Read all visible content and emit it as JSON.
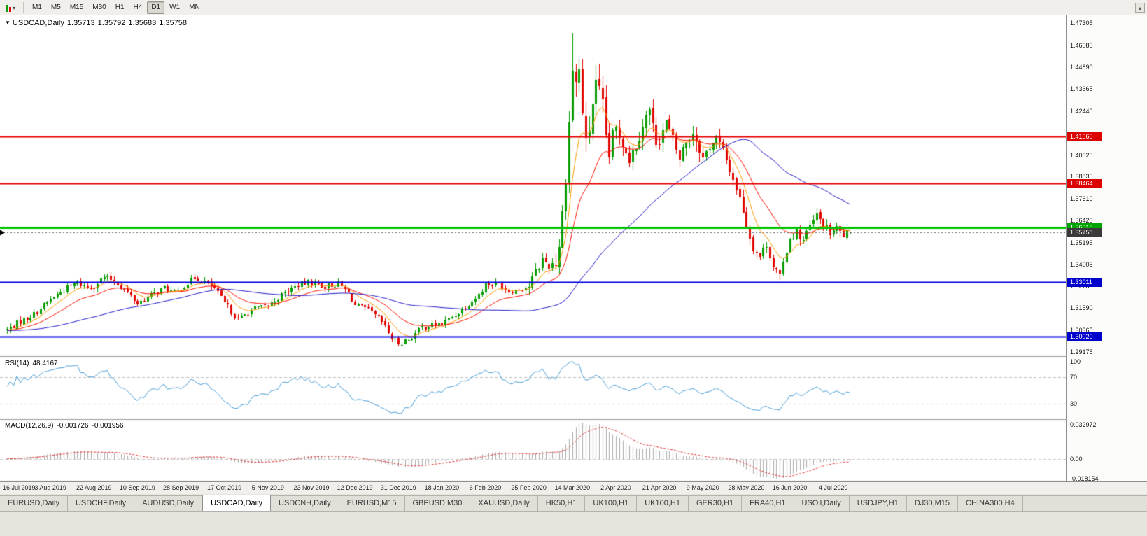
{
  "toolbar": {
    "chart_icon": "candlestick-chart",
    "dropdown_icon": "▾",
    "timeframes": [
      {
        "label": "M1",
        "active": false
      },
      {
        "label": "M5",
        "active": false
      },
      {
        "label": "M15",
        "active": false
      },
      {
        "label": "M30",
        "active": false
      },
      {
        "label": "H1",
        "active": false
      },
      {
        "label": "H4",
        "active": false
      },
      {
        "label": "D1",
        "active": true
      },
      {
        "label": "W1",
        "active": false
      },
      {
        "label": "MN",
        "active": false
      }
    ],
    "scroll_up_glyph": "▴"
  },
  "chart": {
    "title": {
      "marker": "▼",
      "symbol": "USDCAD,Daily",
      "open": "1.35713",
      "high": "1.35792",
      "low": "1.35683",
      "close": "1.35758"
    },
    "price_axis": {
      "ticks": [
        "1.47305",
        "1.46080",
        "1.44890",
        "1.43665",
        "1.42440",
        "1.40025",
        "1.38835",
        "1.37610",
        "1.36420",
        "1.35195",
        "1.34005",
        "1.32780",
        "1.31590",
        "1.30365",
        "1.29175"
      ],
      "badges": [
        {
          "value": "1.41060",
          "price": 1.4106,
          "color": "#dd0000"
        },
        {
          "value": "1.38464",
          "price": 1.38464,
          "color": "#dd0000"
        },
        {
          "value": "1.36018",
          "price": 1.36018,
          "color": "#00a400"
        },
        {
          "value": "1.35758",
          "price": 1.35758,
          "color": "#3a3a3a"
        },
        {
          "value": "1.33011",
          "price": 1.33011,
          "color": "#0000cc"
        },
        {
          "value": "1.30020",
          "price": 1.3002,
          "color": "#0000cc"
        }
      ]
    },
    "levels": [
      {
        "price": 1.4106,
        "color": "#e60000",
        "width": 2
      },
      {
        "price": 1.38464,
        "color": "#e60000",
        "width": 2
      },
      {
        "price": 1.36018,
        "color": "#00c400",
        "width": 3
      },
      {
        "price": 1.33011,
        "color": "#0000e0",
        "width": 2
      },
      {
        "price": 1.3002,
        "color": "#0000e0",
        "width": 2
      }
    ]
  },
  "rsi_panel": {
    "label": "RSI(14)",
    "value": "48.4167",
    "axis": [
      {
        "v": 100,
        "text": "100"
      },
      {
        "v": 70,
        "text": "70"
      },
      {
        "v": 30,
        "text": "30"
      }
    ],
    "dashed_levels": [
      70,
      30
    ],
    "line_color": "#4a9fd8"
  },
  "macd_panel": {
    "label": "MACD(12,26,9)",
    "value_main": "-0.001726",
    "value_signal": "-0.001956",
    "axis": [
      {
        "v": 0.032972,
        "text": "0.032972"
      },
      {
        "v": 0,
        "text": "0.00"
      },
      {
        "v": -0.018154,
        "text": "-0.018154"
      }
    ],
    "histogram_color": "#ababab",
    "signal_color": "#e03030"
  },
  "tabs": [
    {
      "label": "EURUSD,Daily",
      "active": false
    },
    {
      "label": "USDCHF,Daily",
      "active": false
    },
    {
      "label": "AUDUSD,Daily",
      "active": false
    },
    {
      "label": "USDCAD,Daily",
      "active": true
    },
    {
      "label": "USDCNH,Daily",
      "active": false
    },
    {
      "label": "EURUSD,M15",
      "active": false
    },
    {
      "label": "GBPUSD,M30",
      "active": false
    },
    {
      "label": "XAUUSD,Daily",
      "active": false
    },
    {
      "label": "HK50,H1",
      "active": false
    },
    {
      "label": "UK100,H1",
      "active": false
    },
    {
      "label": "UK100,H1",
      "active": false
    },
    {
      "label": "GER30,H1",
      "active": false
    },
    {
      "label": "FRA40,H1",
      "active": false
    },
    {
      "label": "USOil,Daily",
      "active": false
    },
    {
      "label": "USDJPY,H1",
      "active": false
    },
    {
      "label": "DJ30,M15",
      "active": false
    },
    {
      "label": "CHINA300,H4",
      "active": false
    }
  ],
  "chart_data": {
    "type": "candlestick",
    "symbol": "USDCAD",
    "timeframe": "Daily",
    "title": "USDCAD,Daily 1.35713 1.35792 1.35683 1.35758",
    "visible_price_range": [
      1.29175,
      1.47305
    ],
    "last_quote": {
      "open": 1.35713,
      "high": 1.35792,
      "low": 1.35683,
      "close": 1.35758
    },
    "horizontal_lines": [
      {
        "price": 1.4106,
        "color": "red"
      },
      {
        "price": 1.38464,
        "color": "red"
      },
      {
        "price": 1.36018,
        "color": "green"
      },
      {
        "price": 1.33011,
        "color": "blue"
      },
      {
        "price": 1.3002,
        "color": "blue"
      }
    ],
    "x_axis": [
      {
        "label": "16 Jul 2019",
        "index": 0
      },
      {
        "label": "3 Aug 2019",
        "index": 13
      },
      {
        "label": "22 Aug 2019",
        "index": 26
      },
      {
        "label": "10 Sep 2019",
        "index": 39
      },
      {
        "label": "28 Sep 2019",
        "index": 52
      },
      {
        "label": "17 Oct 2019",
        "index": 65
      },
      {
        "label": "5 Nov 2019",
        "index": 78
      },
      {
        "label": "23 Nov 2019",
        "index": 91
      },
      {
        "label": "12 Dec 2019",
        "index": 104
      },
      {
        "label": "31 Dec 2019",
        "index": 117
      },
      {
        "label": "18 Jan 2020",
        "index": 130
      },
      {
        "label": "6 Feb 2020",
        "index": 143
      },
      {
        "label": "25 Feb 2020",
        "index": 156
      },
      {
        "label": "14 Mar 2020",
        "index": 169
      },
      {
        "label": "2 Apr 2020",
        "index": 182
      },
      {
        "label": "21 Apr 2020",
        "index": 195
      },
      {
        "label": "9 May 2020",
        "index": 208
      },
      {
        "label": "28 May 2020",
        "index": 221
      },
      {
        "label": "16 Jun 2020",
        "index": 234
      },
      {
        "label": "4 Jul 2020",
        "index": 247
      }
    ],
    "candle_count": 253,
    "close_path": [
      [
        0,
        1.304
      ],
      [
        4,
        1.3085
      ],
      [
        8,
        1.3125
      ],
      [
        13,
        1.3205
      ],
      [
        17,
        1.3262
      ],
      [
        21,
        1.3298
      ],
      [
        24,
        1.327
      ],
      [
        26,
        1.3282
      ],
      [
        29,
        1.3328
      ],
      [
        32,
        1.331
      ],
      [
        36,
        1.3242
      ],
      [
        39,
        1.3185
      ],
      [
        43,
        1.3228
      ],
      [
        47,
        1.3268
      ],
      [
        50,
        1.3242
      ],
      [
        53,
        1.3282
      ],
      [
        56,
        1.3325
      ],
      [
        59,
        1.3305
      ],
      [
        62,
        1.3268
      ],
      [
        65,
        1.3185
      ],
      [
        69,
        1.3095
      ],
      [
        73,
        1.3148
      ],
      [
        78,
        1.3172
      ],
      [
        83,
        1.3242
      ],
      [
        87,
        1.3288
      ],
      [
        91,
        1.3302
      ],
      [
        95,
        1.3278
      ],
      [
        99,
        1.3292
      ],
      [
        102,
        1.324
      ],
      [
        104,
        1.3172
      ],
      [
        108,
        1.3148
      ],
      [
        112,
        1.3082
      ],
      [
        115,
        1.2992
      ],
      [
        117,
        1.2965
      ],
      [
        120,
        1.2985
      ],
      [
        124,
        1.3052
      ],
      [
        127,
        1.3062
      ],
      [
        130,
        1.3072
      ],
      [
        134,
        1.3122
      ],
      [
        138,
        1.3182
      ],
      [
        141,
        1.3232
      ],
      [
        143,
        1.3288
      ],
      [
        147,
        1.3292
      ],
      [
        150,
        1.3252
      ],
      [
        153,
        1.3262
      ],
      [
        156,
        1.3282
      ],
      [
        158,
        1.3355
      ],
      [
        160,
        1.3428
      ],
      [
        162,
        1.3392
      ],
      [
        164,
        1.3425
      ],
      [
        165,
        1.3515
      ],
      [
        166,
        1.3672
      ],
      [
        167,
        1.3915
      ],
      [
        168,
        1.418
      ],
      [
        169,
        1.448
      ],
      [
        170,
        1.4395
      ],
      [
        171,
        1.447
      ],
      [
        172,
        1.4245
      ],
      [
        173,
        1.4052
      ],
      [
        174,
        1.415
      ],
      [
        175,
        1.4298
      ],
      [
        176,
        1.4375
      ],
      [
        177,
        1.4328
      ],
      [
        178,
        1.4252
      ],
      [
        179,
        1.4105
      ],
      [
        180,
        1.4005
      ],
      [
        181,
        1.4082
      ],
      [
        182,
        1.4148
      ],
      [
        184,
        1.4078
      ],
      [
        186,
        1.3985
      ],
      [
        188,
        1.4062
      ],
      [
        190,
        1.4178
      ],
      [
        192,
        1.4252
      ],
      [
        193,
        1.4152
      ],
      [
        194,
        1.4085
      ],
      [
        195,
        1.4102
      ],
      [
        197,
        1.4178
      ],
      [
        199,
        1.4082
      ],
      [
        201,
        1.3982
      ],
      [
        203,
        1.4082
      ],
      [
        205,
        1.4128
      ],
      [
        207,
        1.4048
      ],
      [
        208,
        1.3985
      ],
      [
        210,
        1.4052
      ],
      [
        212,
        1.4098
      ],
      [
        214,
        1.4022
      ],
      [
        216,
        1.3922
      ],
      [
        218,
        1.3822
      ],
      [
        220,
        1.3702
      ],
      [
        221,
        1.3612
      ],
      [
        223,
        1.3492
      ],
      [
        225,
        1.3445
      ],
      [
        227,
        1.3512
      ],
      [
        229,
        1.3392
      ],
      [
        231,
        1.3325
      ],
      [
        233,
        1.3482
      ],
      [
        234,
        1.3548
      ],
      [
        236,
        1.3578
      ],
      [
        238,
        1.3532
      ],
      [
        240,
        1.3608
      ],
      [
        242,
        1.3668
      ],
      [
        244,
        1.3622
      ],
      [
        246,
        1.3572
      ],
      [
        248,
        1.3595
      ],
      [
        250,
        1.3562
      ],
      [
        252,
        1.3576
      ]
    ],
    "extremes": {
      "high": {
        "index": 169,
        "price": 1.4675
      },
      "lows": [
        {
          "index": 117,
          "price": 1.2952
        },
        {
          "index": 231,
          "price": 1.3316
        }
      ]
    },
    "volatility_regimes": [
      [
        0,
        155,
        0.004
      ],
      [
        156,
        163,
        0.007
      ],
      [
        164,
        181,
        0.016
      ],
      [
        182,
        207,
        0.01
      ],
      [
        208,
        220,
        0.007
      ],
      [
        221,
        252,
        0.006
      ]
    ],
    "noise_seed": 7,
    "indicators": [
      {
        "name": "MA",
        "periods": [
          8,
          20,
          55
        ],
        "colors": [
          "#ff9900",
          "#ff1400",
          "#2219c8"
        ]
      },
      {
        "name": "RSI",
        "period": 14,
        "current": 48.4167,
        "levels": [
          100,
          70,
          30
        ]
      },
      {
        "name": "MACD",
        "params": [
          12,
          26,
          9
        ],
        "current_main": -0.001726,
        "current_signal": -0.001956,
        "axis_max": 0.032972,
        "axis_min": -0.018154
      }
    ]
  }
}
